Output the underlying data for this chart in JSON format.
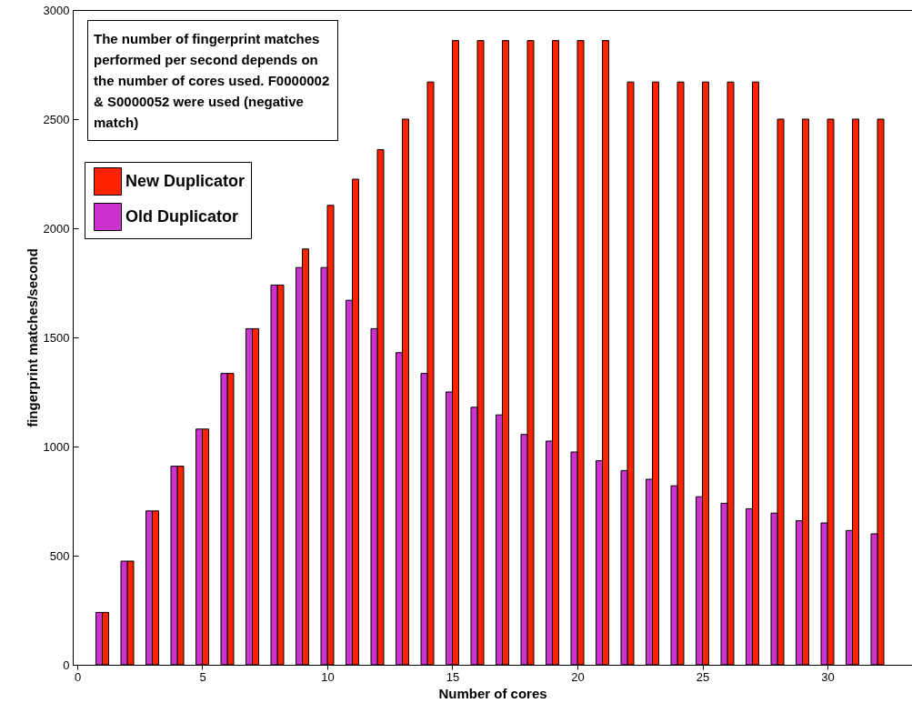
{
  "chart_data": {
    "type": "bar",
    "xlabel": "Number of cores",
    "ylabel": "fingerprint matches/second",
    "annotations": [
      "The number of fingerprint matches performed per second depends on the number of cores used. F0000002 & S0000052 were used (negative match)"
    ],
    "x": [
      1,
      2,
      3,
      4,
      5,
      6,
      7,
      8,
      9,
      10,
      11,
      12,
      13,
      14,
      15,
      16,
      17,
      18,
      19,
      20,
      21,
      22,
      23,
      24,
      25,
      26,
      27,
      28,
      29,
      30,
      31,
      32
    ],
    "series": [
      {
        "name": "New Duplicator",
        "color": "#ff2200",
        "values": [
          240,
          475,
          705,
          910,
          1080,
          1335,
          1540,
          1740,
          1905,
          2105,
          2225,
          2360,
          2500,
          2670,
          2860,
          2860,
          2860,
          2860,
          2860,
          2860,
          2860,
          2670,
          2670,
          2670,
          2670,
          2670,
          2670,
          2500,
          2500,
          2500,
          2500,
          2500
        ]
      },
      {
        "name": "Old Duplicator",
        "color": "#cc33cc",
        "values": [
          240,
          475,
          705,
          910,
          1080,
          1335,
          1540,
          1740,
          1820,
          1820,
          1670,
          1540,
          1430,
          1335,
          1250,
          1180,
          1145,
          1055,
          1025,
          975,
          935,
          890,
          850,
          820,
          770,
          740,
          715,
          695,
          660,
          650,
          615,
          600
        ]
      }
    ],
    "xlim": [
      0,
      33.2
    ],
    "xticks": [
      0,
      5,
      10,
      15,
      20,
      25,
      30
    ],
    "ylim": [
      0,
      3000
    ],
    "yticks": [
      0,
      500,
      1000,
      1500,
      2000,
      2500,
      3000
    ],
    "grid": false,
    "legend": "top left"
  }
}
